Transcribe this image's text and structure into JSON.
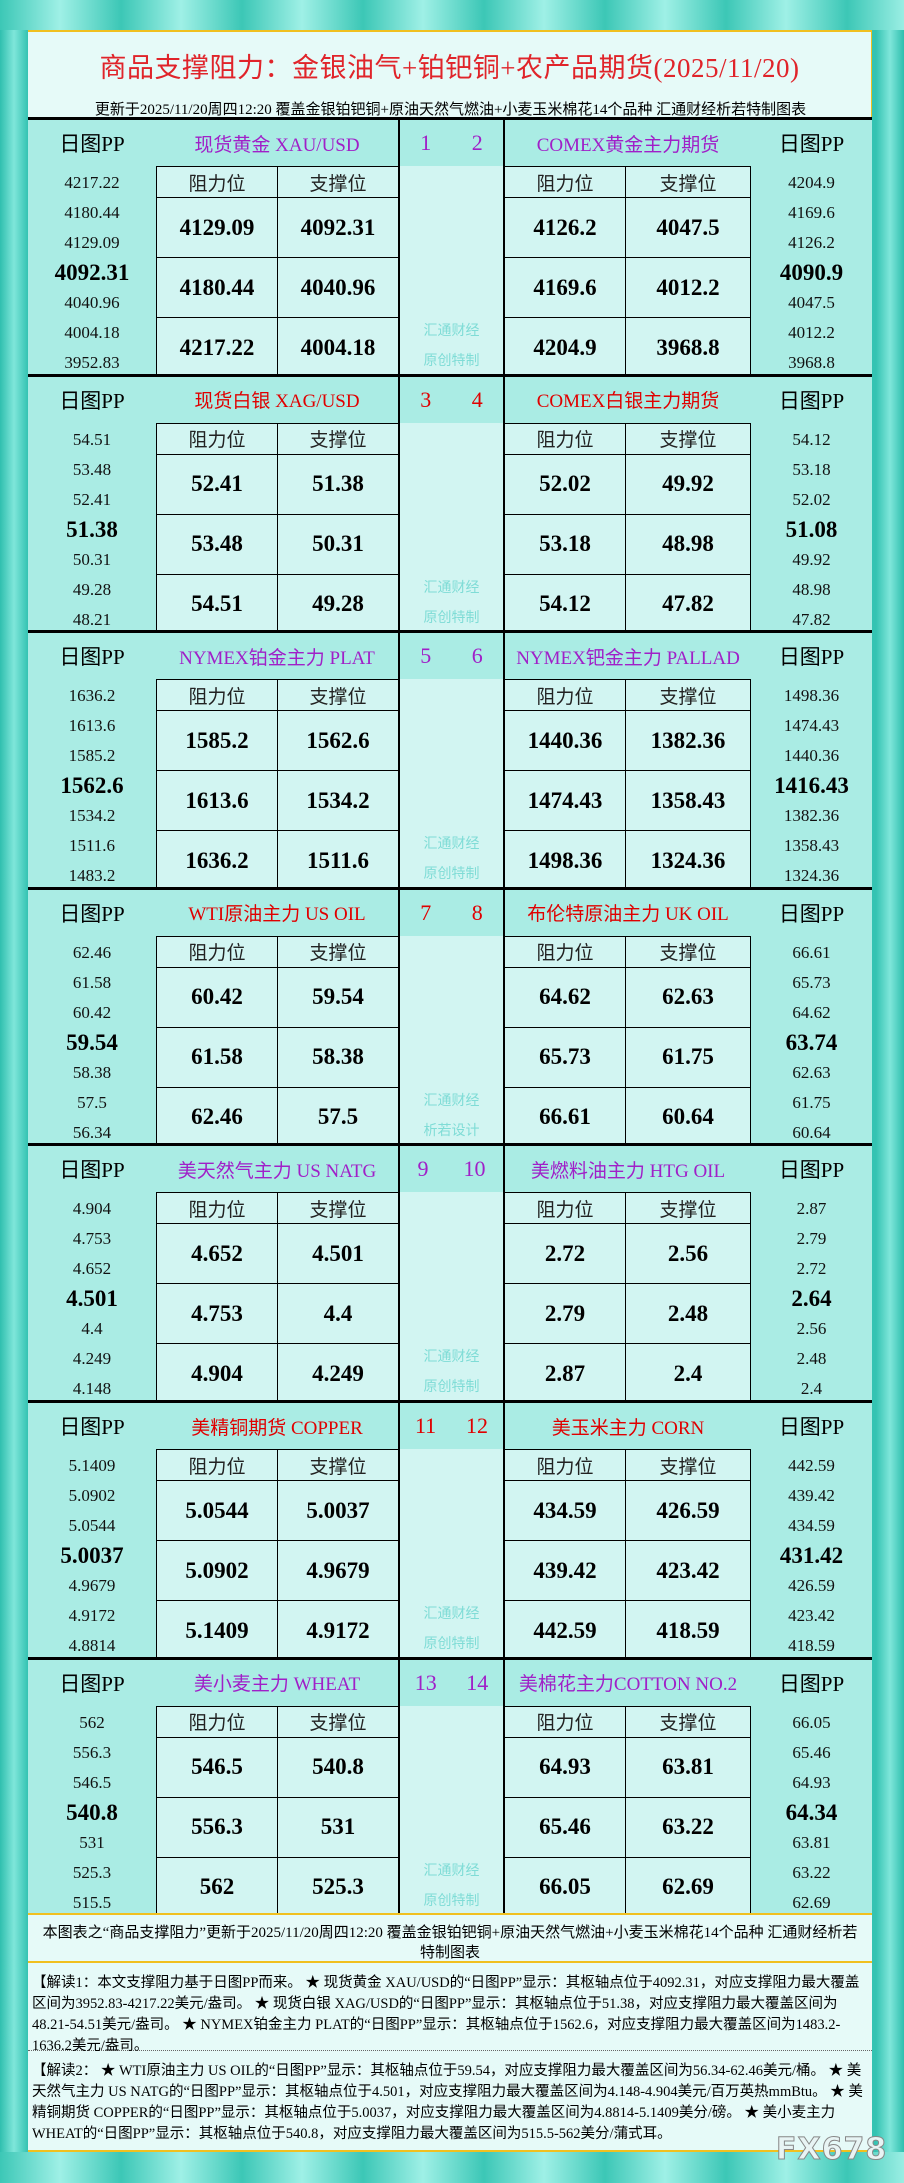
{
  "header": {
    "title": "商品支撑阻力：金银油气+铂钯铜+农产品期货(2025/11/20)",
    "subtitle": "更新于2025/11/20周四12:20 覆盖金银铂钯铜+原油天然气燃油+小麦玉米棉花14个品种 汇通财经析若特制图表"
  },
  "labels": {
    "pp": "日图PP",
    "resistance": "阻力位",
    "support": "支撑位"
  },
  "colors": {
    "purple": "#a020c8",
    "red": "#e00000"
  },
  "sections": [
    {
      "color": "#a020c8",
      "nums": [
        "1",
        "2"
      ],
      "wm": [
        "汇通财经",
        "原创特制"
      ],
      "left": {
        "name": "现货黄金 XAU/USD",
        "pp": [
          "4217.22",
          "4180.44",
          "4129.09",
          "4092.31",
          "4040.96",
          "4004.18",
          "3952.83"
        ],
        "res": [
          "4129.09",
          "4180.44",
          "4217.22"
        ],
        "sup": [
          "4092.31",
          "4040.96",
          "4004.18"
        ]
      },
      "right": {
        "name": "COMEX黄金主力期货",
        "pp": [
          "4204.9",
          "4169.6",
          "4126.2",
          "4090.9",
          "4047.5",
          "4012.2",
          "3968.8"
        ],
        "res": [
          "4126.2",
          "4169.6",
          "4204.9"
        ],
        "sup": [
          "4047.5",
          "4012.2",
          "3968.8"
        ]
      }
    },
    {
      "color": "#e00000",
      "nums": [
        "3",
        "4"
      ],
      "wm": [
        "汇通财经",
        "原创特制"
      ],
      "left": {
        "name": "现货白银 XAG/USD",
        "pp": [
          "54.51",
          "53.48",
          "52.41",
          "51.38",
          "50.31",
          "49.28",
          "48.21"
        ],
        "res": [
          "52.41",
          "53.48",
          "54.51"
        ],
        "sup": [
          "51.38",
          "50.31",
          "49.28"
        ]
      },
      "right": {
        "name": "COMEX白银主力期货",
        "pp": [
          "54.12",
          "53.18",
          "52.02",
          "51.08",
          "49.92",
          "48.98",
          "47.82"
        ],
        "res": [
          "52.02",
          "53.18",
          "54.12"
        ],
        "sup": [
          "49.92",
          "48.98",
          "47.82"
        ]
      }
    },
    {
      "color": "#a020c8",
      "nums": [
        "5",
        "6"
      ],
      "wm": [
        "汇通财经",
        "原创特制"
      ],
      "left": {
        "name": "NYMEX铂金主力 PLAT",
        "pp": [
          "1636.2",
          "1613.6",
          "1585.2",
          "1562.6",
          "1534.2",
          "1511.6",
          "1483.2"
        ],
        "res": [
          "1585.2",
          "1613.6",
          "1636.2"
        ],
        "sup": [
          "1562.6",
          "1534.2",
          "1511.6"
        ]
      },
      "right": {
        "name": "NYMEX钯金主力 PALLAD",
        "pp": [
          "1498.36",
          "1474.43",
          "1440.36",
          "1416.43",
          "1382.36",
          "1358.43",
          "1324.36"
        ],
        "res": [
          "1440.36",
          "1474.43",
          "1498.36"
        ],
        "sup": [
          "1382.36",
          "1358.43",
          "1324.36"
        ]
      }
    },
    {
      "color": "#e00000",
      "nums": [
        "7",
        "8"
      ],
      "wm": [
        "汇通财经",
        "析若设计"
      ],
      "left": {
        "name": "WTI原油主力 US OIL",
        "pp": [
          "62.46",
          "61.58",
          "60.42",
          "59.54",
          "58.38",
          "57.5",
          "56.34"
        ],
        "res": [
          "60.42",
          "61.58",
          "62.46"
        ],
        "sup": [
          "59.54",
          "58.38",
          "57.5"
        ]
      },
      "right": {
        "name": "布伦特原油主力 UK OIL",
        "pp": [
          "66.61",
          "65.73",
          "64.62",
          "63.74",
          "62.63",
          "61.75",
          "60.64"
        ],
        "res": [
          "64.62",
          "65.73",
          "66.61"
        ],
        "sup": [
          "62.63",
          "61.75",
          "60.64"
        ]
      }
    },
    {
      "color": "#a020c8",
      "nums": [
        "9",
        "10"
      ],
      "wm": [
        "汇通财经",
        "原创特制"
      ],
      "left": {
        "name": "美天然气主力 US NATG",
        "pp": [
          "4.904",
          "4.753",
          "4.652",
          "4.501",
          "4.4",
          "4.249",
          "4.148"
        ],
        "res": [
          "4.652",
          "4.753",
          "4.904"
        ],
        "sup": [
          "4.501",
          "4.4",
          "4.249"
        ]
      },
      "right": {
        "name": "美燃料油主力 HTG OIL",
        "pp": [
          "2.87",
          "2.79",
          "2.72",
          "2.64",
          "2.56",
          "2.48",
          "2.4"
        ],
        "res": [
          "2.72",
          "2.79",
          "2.87"
        ],
        "sup": [
          "2.56",
          "2.48",
          "2.4"
        ]
      }
    },
    {
      "color": "#e00000",
      "nums": [
        "11",
        "12"
      ],
      "wm": [
        "汇通财经",
        "原创特制"
      ],
      "left": {
        "name": "美精铜期货 COPPER",
        "pp": [
          "5.1409",
          "5.0902",
          "5.0544",
          "5.0037",
          "4.9679",
          "4.9172",
          "4.8814"
        ],
        "res": [
          "5.0544",
          "5.0902",
          "5.1409"
        ],
        "sup": [
          "5.0037",
          "4.9679",
          "4.9172"
        ]
      },
      "right": {
        "name": "美玉米主力 CORN",
        "pp": [
          "442.59",
          "439.42",
          "434.59",
          "431.42",
          "426.59",
          "423.42",
          "418.59"
        ],
        "res": [
          "434.59",
          "439.42",
          "442.59"
        ],
        "sup": [
          "426.59",
          "423.42",
          "418.59"
        ]
      }
    },
    {
      "color": "#a020c8",
      "nums": [
        "13",
        "14"
      ],
      "wm": [
        "汇通财经",
        "原创特制"
      ],
      "left": {
        "name": "美小麦主力 WHEAT",
        "pp": [
          "562",
          "556.3",
          "546.5",
          "540.8",
          "531",
          "525.3",
          "515.5"
        ],
        "res": [
          "546.5",
          "556.3",
          "562"
        ],
        "sup": [
          "540.8",
          "531",
          "525.3"
        ]
      },
      "right": {
        "name": "美棉花主力COTTON NO.2",
        "pp": [
          "66.05",
          "65.46",
          "64.93",
          "64.34",
          "63.81",
          "63.22",
          "62.69"
        ],
        "res": [
          "64.93",
          "65.46",
          "66.05"
        ],
        "sup": [
          "63.81",
          "63.22",
          "62.69"
        ]
      }
    }
  ],
  "footer": {
    "note": "本图表之“商品支撑阻力”更新于2025/11/20周四12:20 覆盖金银铂钯铜+原油天然气燃油+小麦玉米棉花14个品种 汇通财经析若特制图表",
    "interp1": "【解读1：本文支撑阻力基于日图PP而来。 ★ 现货黄金 XAU/USD的“日图PP”显示：其枢轴点位于4092.31，对应支撑阻力最大覆盖区间为3952.83-4217.22美元/盎司。 ★ 现货白银 XAG/USD的“日图PP”显示：其枢轴点位于51.38，对应支撑阻力最大覆盖区间为48.21-54.51美元/盎司。 ★ NYMEX铂金主力 PLAT的“日图PP”显示：其枢轴点位于1562.6，对应支撑阻力最大覆盖区间为1483.2-1636.2美元/盎司。",
    "interp2": "【解读2： ★ WTI原油主力 US OIL的“日图PP”显示：其枢轴点位于59.54，对应支撑阻力最大覆盖区间为56.34-62.46美元/桶。 ★ 美天然气主力 US NATG的“日图PP”显示：其枢轴点位于4.501，对应支撑阻力最大覆盖区间为4.148-4.904美元/百万英热mmBtu。 ★ 美精铜期货 COPPER的“日图PP”显示：其枢轴点位于5.0037，对应支撑阻力最大覆盖区间为4.8814-5.1409美分/磅。 ★ 美小麦主力 WHEAT的“日图PP”显示：其枢轴点位于540.8，对应支撑阻力最大覆盖区间为515.5-562美分/蒲式耳。",
    "logo": "FX678"
  }
}
